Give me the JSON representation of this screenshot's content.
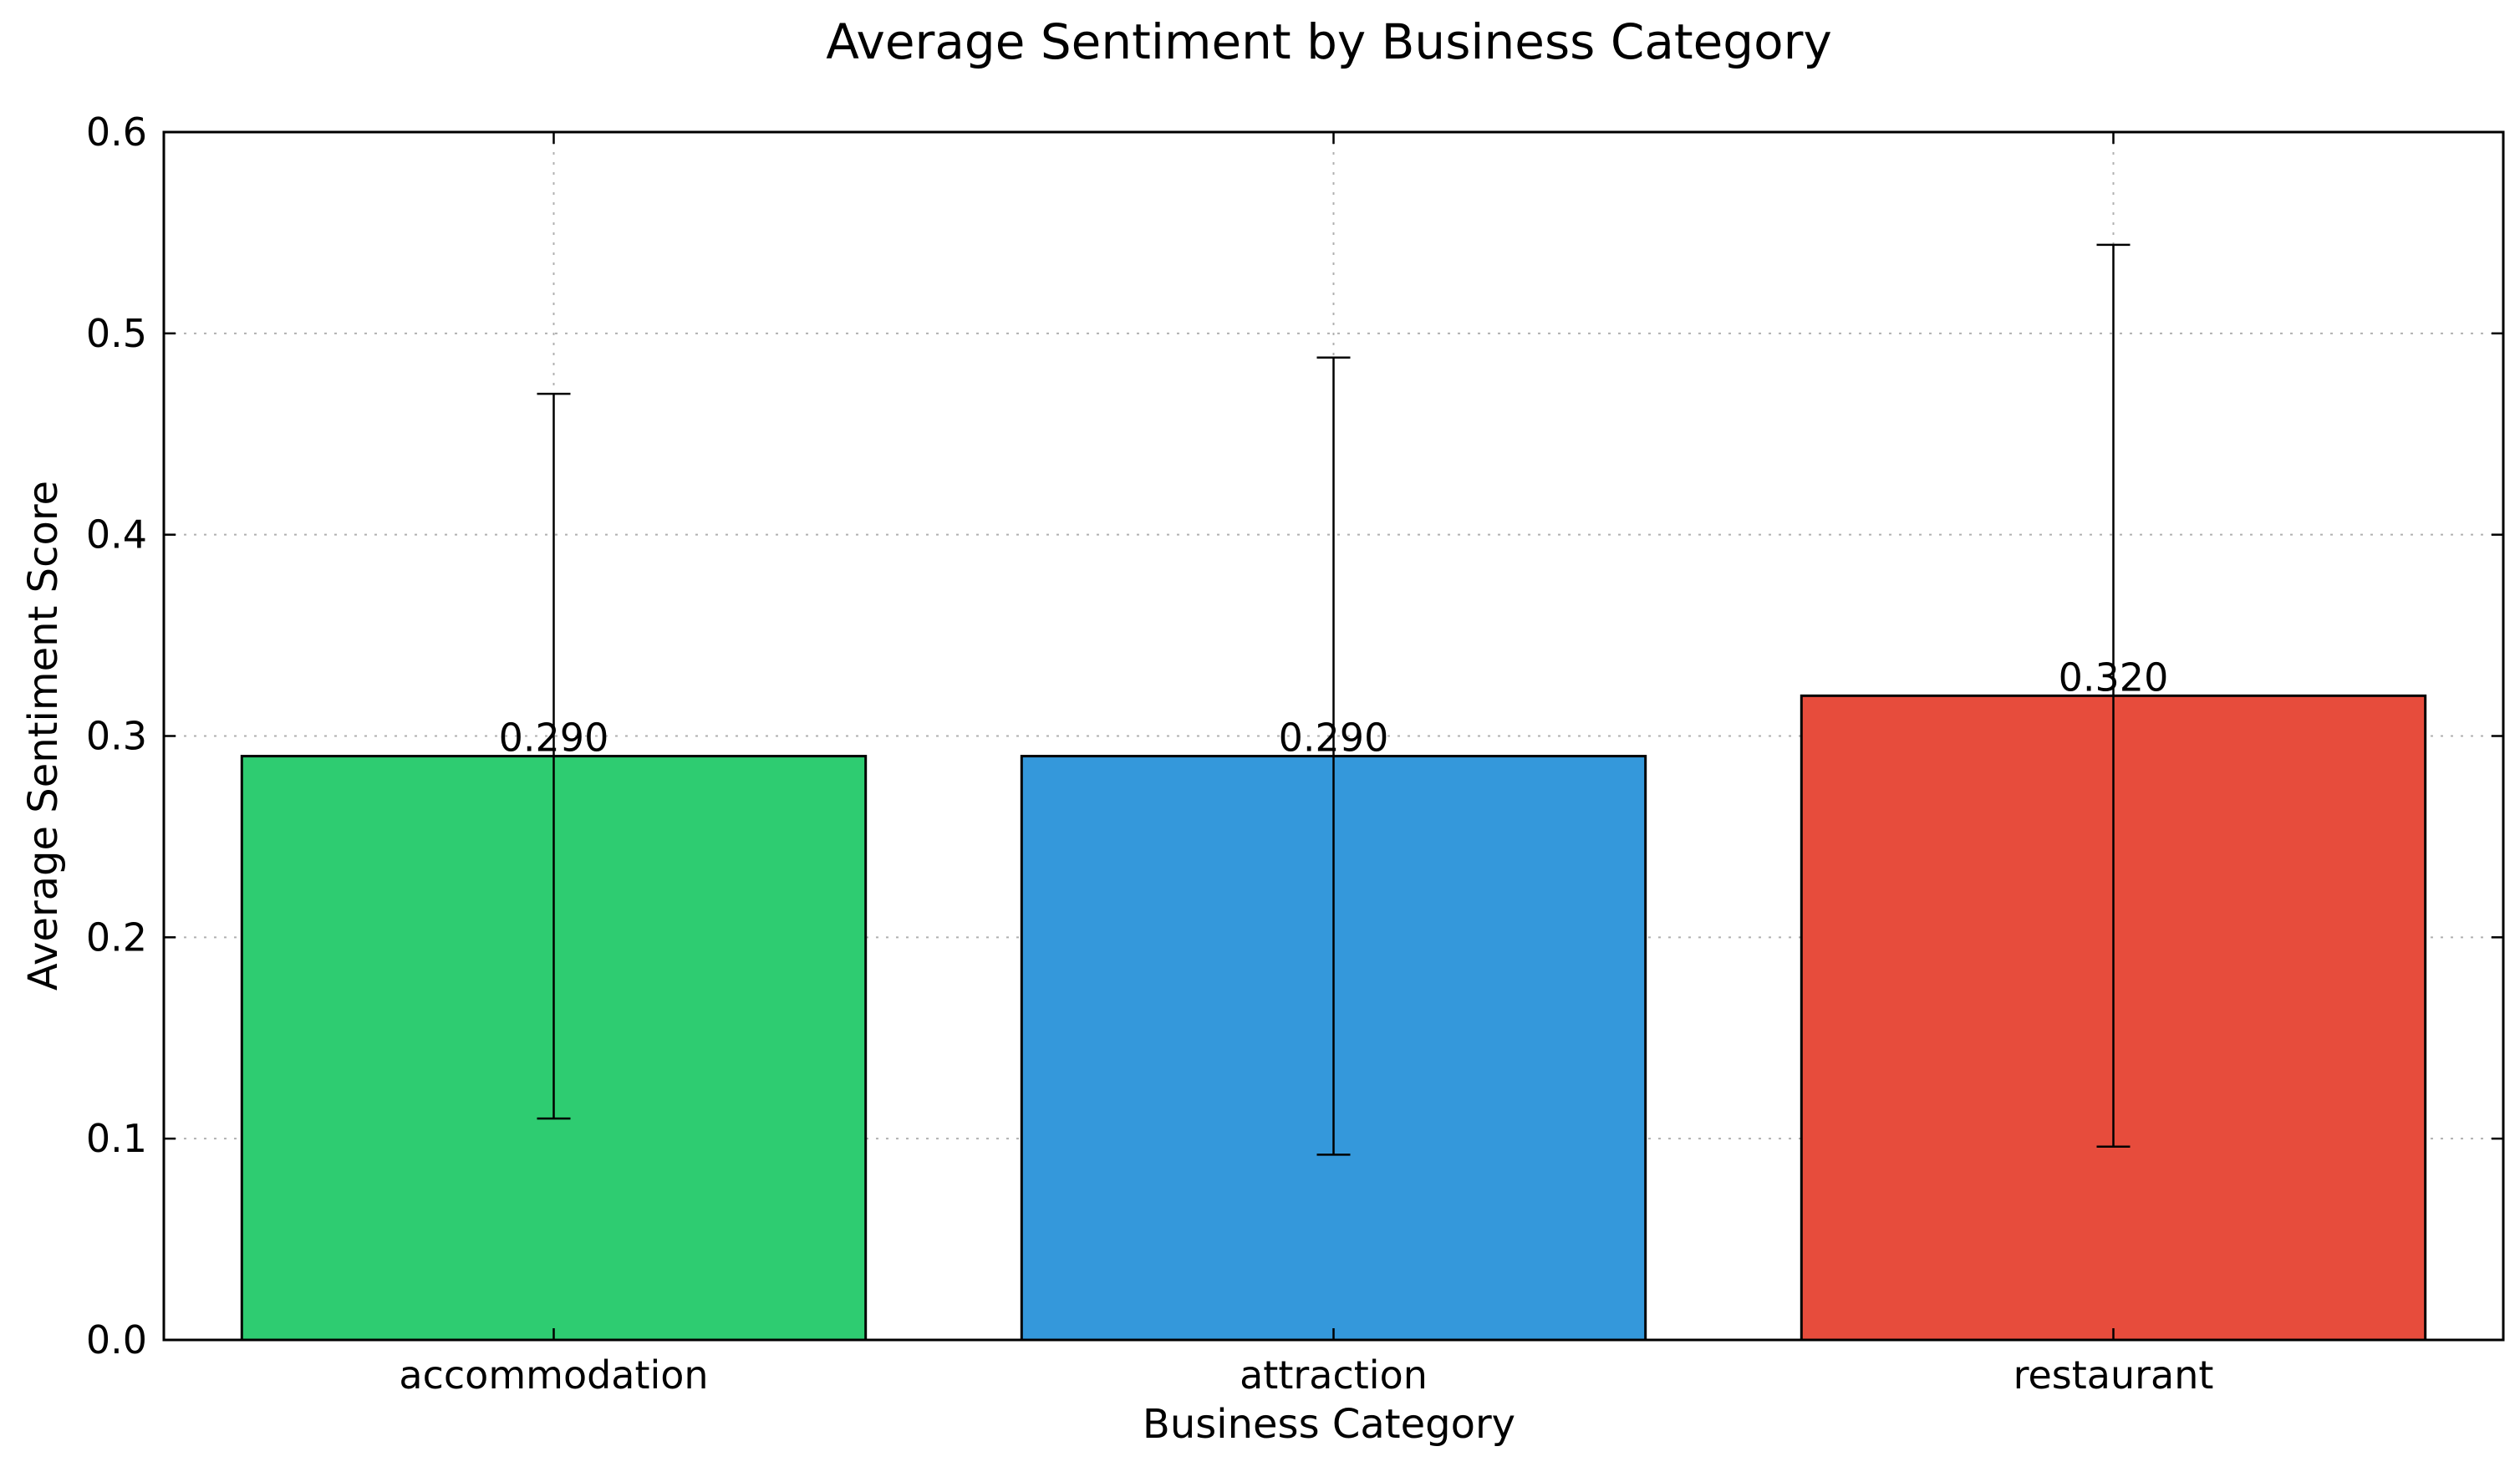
{
  "chart_data": {
    "type": "bar",
    "title": "Average Sentiment by Business Category",
    "xlabel": "Business Category",
    "ylabel": "Average Sentiment Score",
    "categories": [
      "accommodation",
      "attraction",
      "restaurant"
    ],
    "values": [
      0.29,
      0.29,
      0.32
    ],
    "value_labels": [
      "0.290",
      "0.290",
      "0.320"
    ],
    "error_bars": [
      {
        "low": 0.11,
        "high": 0.47
      },
      {
        "low": 0.092,
        "high": 0.488
      },
      {
        "low": 0.096,
        "high": 0.544
      }
    ],
    "colors": [
      "#2ecc71",
      "#3498db",
      "#e74c3c"
    ],
    "ylim": [
      0.0,
      0.6
    ],
    "yticks": [
      0.0,
      0.1,
      0.2,
      0.3,
      0.4,
      0.5,
      0.6
    ],
    "ytick_labels": [
      "0.0",
      "0.1",
      "0.2",
      "0.3",
      "0.4",
      "0.5",
      "0.6"
    ],
    "grid": true,
    "legend": "none"
  }
}
